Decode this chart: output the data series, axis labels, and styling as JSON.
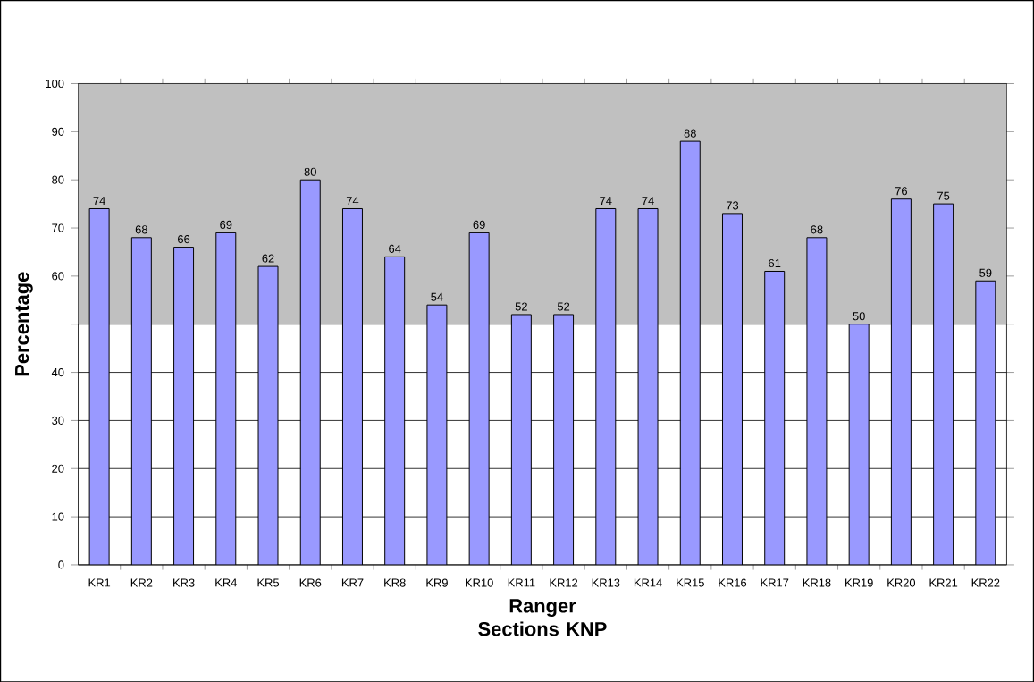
{
  "chart_data": {
    "type": "bar",
    "xlabel": "Ranger Sections KNP",
    "ylabel": "Percentage",
    "categories": [
      "KR1",
      "KR2",
      "KR3",
      "KR4",
      "KR5",
      "KR6",
      "KR7",
      "KR8",
      "KR9",
      "KR10",
      "KR11",
      "KR12",
      "KR13",
      "KR14",
      "KR15",
      "KR16",
      "KR17",
      "KR18",
      "KR19",
      "KR20",
      "KR21",
      "KR22"
    ],
    "values": [
      74,
      68,
      66,
      69,
      62,
      80,
      74,
      64,
      54,
      69,
      52,
      52,
      74,
      74,
      88,
      73,
      61,
      68,
      50,
      76,
      75,
      59
    ],
    "color": "#9999ff",
    "ylim": [
      0,
      100
    ],
    "yticks": [
      0,
      10,
      20,
      30,
      40,
      {
        "value": 50,
        "label": null
      },
      60,
      70,
      80,
      90,
      100
    ],
    "grid": "y",
    "data_labels": true,
    "bands": [
      {
        "axis": "y",
        "from": 50,
        "to": 100,
        "color": "#c0c0c0"
      }
    ]
  }
}
